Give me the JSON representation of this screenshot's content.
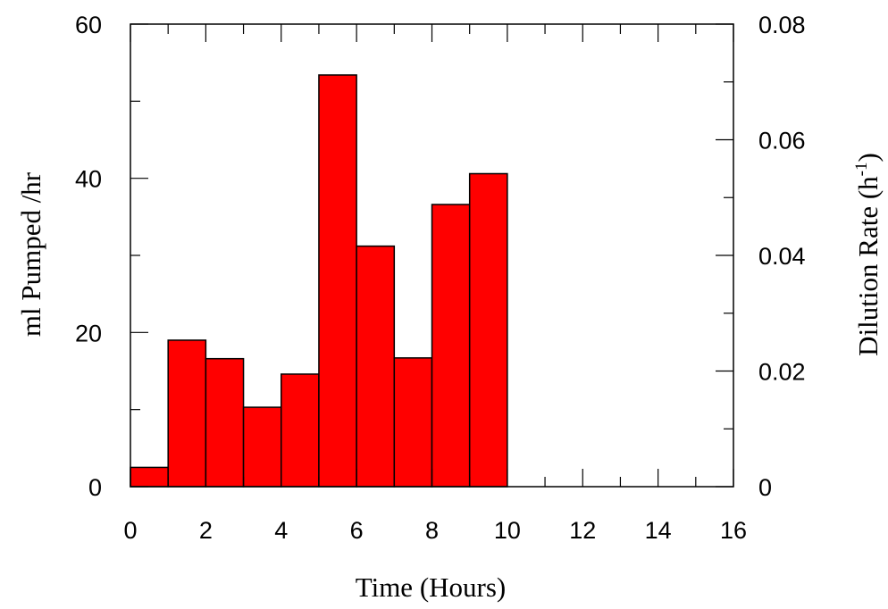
{
  "chart_data": {
    "type": "bar",
    "bar_style": "histogram",
    "xlabel": "Time (Hours)",
    "ylabel": "ml Pumped /hr",
    "y2label_main": "Dilution Rate (h",
    "y2label_sup": "-1",
    "y2label_end": ")",
    "xlim": [
      0,
      16
    ],
    "ylim": [
      0,
      60
    ],
    "y2lim": [
      0,
      0.08
    ],
    "x_ticks": [
      "0",
      "2",
      "4",
      "6",
      "8",
      "10",
      "12",
      "14",
      "16"
    ],
    "y_ticks": [
      "0",
      "20",
      "40",
      "60"
    ],
    "y2_ticks": [
      "0",
      "0.02",
      "0.04",
      "0.06",
      "0.08"
    ],
    "bin_starts": [
      0,
      1,
      2,
      3,
      4,
      5,
      6,
      7,
      8,
      9
    ],
    "bin_width": 1,
    "values": [
      2.5,
      19,
      16.6,
      10.3,
      14.6,
      53.4,
      31.2,
      16.7,
      36.6,
      40.6
    ],
    "bar_color": "#ff0000",
    "grid": false,
    "legend": "none"
  }
}
